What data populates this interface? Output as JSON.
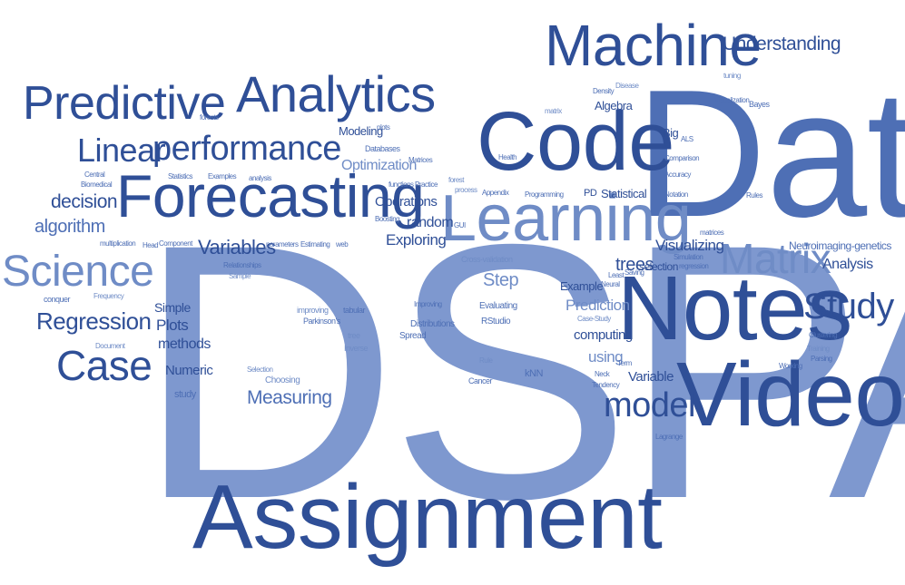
{
  "cloud": {
    "words": {
      "dspa": "DSPA",
      "data": "Data",
      "assignment": "Assignment",
      "notes": "Notes",
      "video": "Video",
      "code": "Code",
      "forecasting": "Forecasting",
      "learning": "Learning",
      "machine": "Machine",
      "analytics": "Analytics",
      "predictive": "Predictive",
      "performance": "performance",
      "linear": "Linear",
      "science": "Science",
      "case": "Case",
      "regression": "Regression",
      "matrix": "Matrix",
      "study": "Study",
      "model": "model",
      "understanding": "Understanding",
      "decision": "decision",
      "algorithm": "algorithm",
      "variables": "Variables",
      "measuring": "Measuring",
      "trees": "trees",
      "analysis": "Analysis",
      "visualizing": "Visualizing",
      "exploring": "Exploring",
      "random": "random",
      "operations": "Operations",
      "optimization": "Optimization",
      "modeling": "Modeling",
      "simple": "Simple",
      "plots": "Plots",
      "methods": "methods",
      "numeric": "Numeric",
      "step": "Step",
      "prediction": "Prediction",
      "computing": "computing",
      "using": "using",
      "variable": "Variable",
      "example": "Example",
      "selection": "selection",
      "statistical": "Statistical",
      "algebra": "Algebra",
      "big": "Big",
      "neuroimaging": "Neuroimaging-genetics",
      "study2": "study",
      "cancer": "Cancer",
      "knn": "kNN",
      "rstudio": "RStudio",
      "evaluating": "Evaluating",
      "distributions": "Distributions",
      "spread": "Spread",
      "improving": "improving",
      "tabular": "tabular",
      "parkinsons": "Parkinson's",
      "tree": "tree",
      "inverse": "Inverse",
      "choosing": "Choosing",
      "selection2": "Selection",
      "conquer": "conquer",
      "frequency": "Frequency",
      "document": "Document",
      "multiplication": "multiplication",
      "head": "Head",
      "component": "Component",
      "parameters": "parameters",
      "estimating": "Estimating",
      "web": "web",
      "relationships": "Relationships",
      "sample": "Sample",
      "central": "Central",
      "biomedical": "Biomedical",
      "statistics": "Statistics",
      "examples": "Examples",
      "analysis2": "analysis",
      "forests": "forests",
      "databases": "Databases",
      "matrices": "Matrices",
      "functions": "functions",
      "practice": "Practice",
      "boosting": "Boosting",
      "forest": "forest",
      "process": "process",
      "appendix": "Appendix",
      "health": "Health",
      "programming": "Programming",
      "pd": "PD",
      "gui": "GUI",
      "crossvalidation": "Cross-validation",
      "casestudy": "Case-Study",
      "rule": "Rule",
      "neck": "Neck",
      "tendency": "Tendency",
      "term": "Term",
      "least": "Least",
      "neural": "Neural",
      "saving": "Saving",
      "lagrange": "Lagrange",
      "working": "Working",
      "parsing": "Parsing",
      "training": "Training",
      "clustering": "Clustering",
      "rules": "Rules",
      "notation": "Notation",
      "accuracy": "Accuracy",
      "comparison": "Comparison",
      "als": "ALS",
      "simulation": "Simulation",
      "regression2": "regression",
      "matrices2": "matrices",
      "visualization": "Visualization",
      "bayes": "Bayes",
      "tuning": "tuning",
      "density": "Density",
      "disease": "Disease",
      "matrix2": "matrix",
      "plots2": "plots",
      "improving2": "Improving"
    }
  }
}
